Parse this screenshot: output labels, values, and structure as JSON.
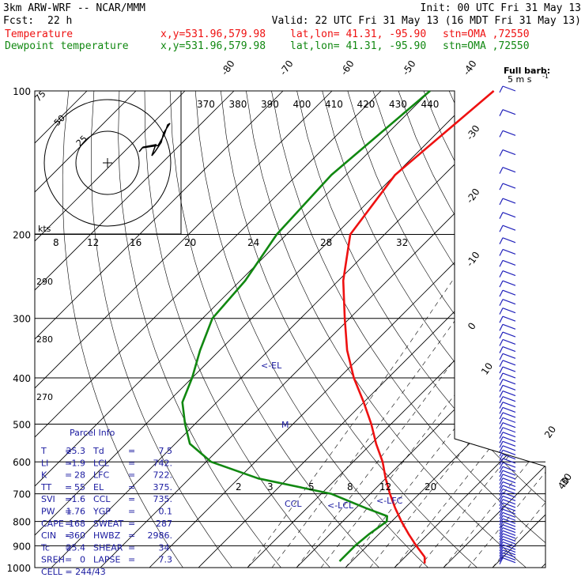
{
  "header": {
    "model": "3km ARW-WRF -- NCAR/MMM",
    "init": "Init: 00 UTC Fri 31 May 13",
    "fcst_label": "Fcst:",
    "fcst_value": "22 h",
    "valid": "Valid: 22 UTC Fri 31 May 13 (16 MDT Fri 31 May 13)",
    "temp_label": "Temperature",
    "dew_label": "Dewpoint temperature",
    "xy": "x,y=531.96,579.98",
    "latlon": "lat,lon= 41.31, -95.90",
    "stn": "stn=OMA ,72550"
  },
  "colors": {
    "temperature": "#ee1111",
    "dewpoint": "#118811",
    "text_blue": "#1a1aa0",
    "barb": "#2222bb"
  },
  "barb_legend": {
    "title": "Full barb:",
    "value": "5 m s",
    "exponent": "-1"
  },
  "hodograph": {
    "kts_label": "kts",
    "rings": [
      "25",
      "50",
      "75"
    ]
  },
  "markers": {
    "el": "<-EL",
    "lcl": "<-LCL",
    "lfc": "<-LFC",
    "ccl": "CCL",
    "m": "M"
  },
  "parcel_info": {
    "title": "Parcel Info",
    "rows": [
      [
        "T",
        "=",
        "25.3",
        "Td",
        "=",
        "7.5"
      ],
      [
        "LI",
        "=",
        "-1.9",
        "LCL",
        "=",
        "742."
      ],
      [
        "K",
        "=",
        "28",
        "LFC",
        "=",
        "722."
      ],
      [
        "TT",
        "=",
        "55",
        "EL",
        "=",
        "375."
      ],
      [
        "SVI",
        "=",
        "-1.6",
        "CCL",
        "=",
        "735."
      ],
      [
        "PW",
        "=",
        "1.76",
        "YGP",
        "=",
        "0.1"
      ],
      [
        "CAPE",
        "=",
        "168",
        "SWEAT",
        "=",
        "287"
      ],
      [
        "CIN",
        "=",
        "-360",
        "HWBZ",
        "=",
        "2986."
      ],
      [
        "Tc",
        "=",
        "25.4",
        "SHEAR",
        "=",
        "34."
      ],
      [
        "SREH",
        "=",
        "0",
        "LAPSE",
        "=",
        "7.3"
      ]
    ],
    "cell": "CELL = 244/43"
  },
  "chart_data": {
    "type": "line",
    "pressure_levels": [
      "100",
      "200",
      "300",
      "400",
      "500",
      "600",
      "700",
      "800",
      "900",
      "1000"
    ],
    "isotherm_labels": [
      "-80",
      "-70",
      "-60",
      "-50",
      "-40",
      "-30",
      "-20",
      "-10",
      "0",
      "10",
      "20",
      "30",
      "40"
    ],
    "theta_labels": [
      "370",
      "380",
      "390",
      "400",
      "410",
      "420",
      "430",
      "440"
    ],
    "mixing_ratio_labels": [
      "2",
      "3",
      "5",
      "8",
      "12",
      "20"
    ],
    "hodo_speed_labels": [
      "8",
      "12",
      "16",
      "20",
      "24",
      "28",
      "32"
    ],
    "left_labels": [
      "290",
      "280",
      "270"
    ],
    "series": [
      {
        "name": "Temperature",
        "unit": "C",
        "points": [
          [
            100,
            -57
          ],
          [
            150,
            -60
          ],
          [
            200,
            -57
          ],
          [
            250,
            -49
          ],
          [
            300,
            -41
          ],
          [
            350,
            -34
          ],
          [
            400,
            -27
          ],
          [
            450,
            -20
          ],
          [
            500,
            -14
          ],
          [
            550,
            -9
          ],
          [
            600,
            -4
          ],
          [
            650,
            0
          ],
          [
            700,
            4
          ],
          [
            750,
            8
          ],
          [
            800,
            12
          ],
          [
            850,
            16
          ],
          [
            900,
            20
          ],
          [
            950,
            24
          ],
          [
            980,
            25.3
          ]
        ]
      },
      {
        "name": "Dewpoint temperature",
        "unit": "C",
        "points": [
          [
            100,
            -70
          ],
          [
            150,
            -73
          ],
          [
            200,
            -72
          ],
          [
            250,
            -69
          ],
          [
            300,
            -68
          ],
          [
            350,
            -64
          ],
          [
            400,
            -60
          ],
          [
            450,
            -57
          ],
          [
            500,
            -52
          ],
          [
            550,
            -47
          ],
          [
            600,
            -39
          ],
          [
            650,
            -26
          ],
          [
            700,
            -8
          ],
          [
            750,
            2
          ],
          [
            780,
            8
          ],
          [
            800,
            9
          ],
          [
            850,
            8
          ],
          [
            900,
            7.5
          ],
          [
            970,
            7.5
          ]
        ]
      }
    ]
  }
}
